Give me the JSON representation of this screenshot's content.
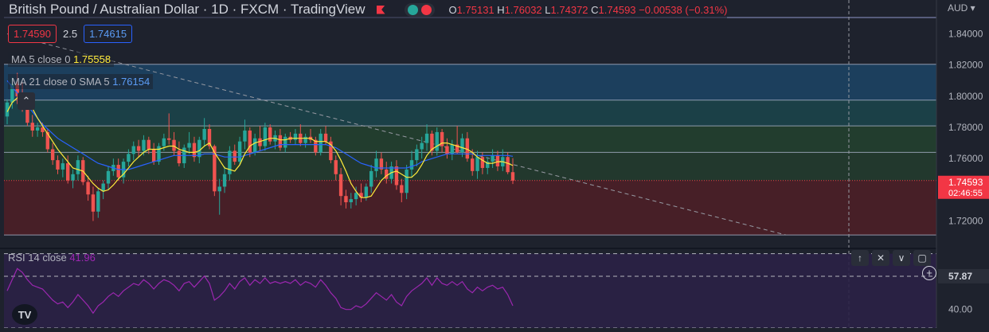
{
  "header": {
    "title": "British Pound / Australian Dollar  ·  1D  ·  FXCM  ·  TradingView",
    "ohlc": {
      "o_label": "O",
      "o": "1.75131",
      "h_label": "H",
      "h": "1.76032",
      "l_label": "L",
      "l": "1.74372",
      "c_label": "C",
      "c": "1.74593",
      "change": "−0.00538 (−0.31%)"
    }
  },
  "trade": {
    "sell": "1.74590",
    "spread": "2.5",
    "buy": "1.74615"
  },
  "indicators": {
    "ma5": {
      "label": "MA 5 close 0",
      "value": "1.75558",
      "color": "#ffeb3b"
    },
    "ma21": {
      "label": "MA 21 close 0 SMA 5",
      "value": "1.76154",
      "color": "#2962ff"
    },
    "rsi": {
      "label": "RSI 14 close",
      "value": "41.96",
      "color": "#9c27b0"
    }
  },
  "price_axis": {
    "currency": "AUD",
    "labels": [
      "1.84000",
      "1.82000",
      "1.80000",
      "1.78000",
      "1.76000",
      "1.72000"
    ],
    "last_price": "1.74593",
    "countdown": "02:46:55"
  },
  "rsi_axis": {
    "labels": [
      "57.87",
      "40.00"
    ]
  },
  "colors": {
    "background": "#1e222d",
    "up": "#26a69a",
    "down": "#ef5350",
    "ma5": "#ffeb3b",
    "ma21": "#2962ff",
    "rsi": "#9c27b0",
    "last": "#f23645"
  },
  "icons": [
    "flag-icon",
    "collapse-up-icon",
    "arrow-up-icon",
    "close-icon",
    "minimize-icon",
    "maximize-icon",
    "plus-icon",
    "tradingview-logo-icon"
  ],
  "chart_data": {
    "type": "candlestick",
    "y_range": [
      1.7075,
      1.8505
    ],
    "zones": [
      {
        "from": 1.8205,
        "to": 1.7975,
        "color": "#1c4a6e"
      },
      {
        "from": 1.7975,
        "to": 1.781,
        "color": "#1b4b50"
      },
      {
        "from": 1.781,
        "to": 1.764,
        "color": "#24472f"
      },
      {
        "from": 1.764,
        "to": 1.746,
        "color": "#24402d"
      },
      {
        "from": 1.746,
        "to": 1.711,
        "color": "#561f26"
      }
    ],
    "level_lines": [
      1.8205,
      1.7975,
      1.781,
      1.764,
      1.711
    ],
    "trendline": {
      "from": [
        0,
        1.84
      ],
      "to": [
        154,
        1.711
      ]
    },
    "candles": [
      [
        1.787,
        1.798,
        1.782,
        1.796
      ],
      [
        1.796,
        1.812,
        1.792,
        1.808
      ],
      [
        1.808,
        1.815,
        1.795,
        1.8
      ],
      [
        1.8,
        1.809,
        1.79,
        1.793
      ],
      [
        1.793,
        1.799,
        1.781,
        1.783
      ],
      [
        1.783,
        1.788,
        1.774,
        1.778
      ],
      [
        1.778,
        1.783,
        1.774,
        1.78
      ],
      [
        1.78,
        1.783,
        1.774,
        1.777
      ],
      [
        1.777,
        1.779,
        1.764,
        1.766
      ],
      [
        1.766,
        1.77,
        1.756,
        1.759
      ],
      [
        1.759,
        1.762,
        1.75,
        1.753
      ],
      [
        1.753,
        1.76,
        1.748,
        1.757
      ],
      [
        1.757,
        1.762,
        1.744,
        1.746
      ],
      [
        1.746,
        1.753,
        1.741,
        1.75
      ],
      [
        1.75,
        1.762,
        1.746,
        1.759
      ],
      [
        1.759,
        1.761,
        1.743,
        1.745
      ],
      [
        1.745,
        1.749,
        1.733,
        1.737
      ],
      [
        1.737,
        1.742,
        1.72,
        1.726
      ],
      [
        1.726,
        1.741,
        1.722,
        1.739
      ],
      [
        1.739,
        1.746,
        1.734,
        1.744
      ],
      [
        1.744,
        1.755,
        1.74,
        1.752
      ],
      [
        1.752,
        1.76,
        1.749,
        1.756
      ],
      [
        1.756,
        1.76,
        1.746,
        1.748
      ],
      [
        1.748,
        1.76,
        1.744,
        1.758
      ],
      [
        1.758,
        1.766,
        1.755,
        1.763
      ],
      [
        1.763,
        1.771,
        1.759,
        1.768
      ],
      [
        1.768,
        1.772,
        1.761,
        1.765
      ],
      [
        1.765,
        1.775,
        1.762,
        1.772
      ],
      [
        1.772,
        1.774,
        1.763,
        1.766
      ],
      [
        1.766,
        1.77,
        1.756,
        1.758
      ],
      [
        1.758,
        1.77,
        1.756,
        1.768
      ],
      [
        1.768,
        1.776,
        1.765,
        1.773
      ],
      [
        1.773,
        1.789,
        1.769,
        1.772
      ],
      [
        1.772,
        1.777,
        1.762,
        1.765
      ],
      [
        1.765,
        1.771,
        1.755,
        1.757
      ],
      [
        1.757,
        1.769,
        1.754,
        1.767
      ],
      [
        1.767,
        1.777,
        1.763,
        1.77
      ],
      [
        1.77,
        1.774,
        1.758,
        1.761
      ],
      [
        1.761,
        1.774,
        1.757,
        1.772
      ],
      [
        1.772,
        1.786,
        1.768,
        1.779
      ],
      [
        1.779,
        1.782,
        1.766,
        1.768
      ],
      [
        1.768,
        1.769,
        1.736,
        1.739
      ],
      [
        1.739,
        1.747,
        1.724,
        1.742
      ],
      [
        1.742,
        1.755,
        1.738,
        1.75
      ],
      [
        1.75,
        1.768,
        1.746,
        1.765
      ],
      [
        1.765,
        1.769,
        1.756,
        1.758
      ],
      [
        1.758,
        1.774,
        1.756,
        1.771
      ],
      [
        1.771,
        1.785,
        1.766,
        1.778
      ],
      [
        1.778,
        1.78,
        1.761,
        1.764
      ],
      [
        1.764,
        1.776,
        1.762,
        1.773
      ],
      [
        1.773,
        1.781,
        1.765,
        1.768
      ],
      [
        1.768,
        1.783,
        1.765,
        1.78
      ],
      [
        1.78,
        1.782,
        1.769,
        1.771
      ],
      [
        1.771,
        1.778,
        1.766,
        1.775
      ],
      [
        1.775,
        1.779,
        1.765,
        1.767
      ],
      [
        1.767,
        1.776,
        1.764,
        1.774
      ],
      [
        1.774,
        1.777,
        1.77,
        1.772
      ],
      [
        1.772,
        1.779,
        1.769,
        1.776
      ],
      [
        1.776,
        1.782,
        1.768,
        1.77
      ],
      [
        1.77,
        1.776,
        1.767,
        1.774
      ],
      [
        1.774,
        1.779,
        1.77,
        1.772
      ],
      [
        1.772,
        1.774,
        1.762,
        1.764
      ],
      [
        1.764,
        1.779,
        1.762,
        1.776
      ],
      [
        1.776,
        1.781,
        1.769,
        1.771
      ],
      [
        1.771,
        1.774,
        1.757,
        1.759
      ],
      [
        1.759,
        1.762,
        1.746,
        1.75
      ],
      [
        1.75,
        1.754,
        1.73,
        1.736
      ],
      [
        1.736,
        1.74,
        1.728,
        1.732
      ],
      [
        1.732,
        1.738,
        1.728,
        1.734
      ],
      [
        1.734,
        1.742,
        1.73,
        1.738
      ],
      [
        1.738,
        1.744,
        1.732,
        1.735
      ],
      [
        1.735,
        1.744,
        1.733,
        1.742
      ],
      [
        1.742,
        1.756,
        1.738,
        1.752
      ],
      [
        1.752,
        1.765,
        1.748,
        1.76
      ],
      [
        1.76,
        1.764,
        1.75,
        1.753
      ],
      [
        1.753,
        1.758,
        1.744,
        1.747
      ],
      [
        1.747,
        1.758,
        1.744,
        1.755
      ],
      [
        1.755,
        1.759,
        1.74,
        1.743
      ],
      [
        1.743,
        1.747,
        1.732,
        1.738
      ],
      [
        1.738,
        1.756,
        1.734,
        1.753
      ],
      [
        1.753,
        1.765,
        1.748,
        1.759
      ],
      [
        1.759,
        1.769,
        1.755,
        1.766
      ],
      [
        1.766,
        1.774,
        1.76,
        1.77
      ],
      [
        1.77,
        1.782,
        1.765,
        1.776
      ],
      [
        1.776,
        1.778,
        1.762,
        1.765
      ],
      [
        1.765,
        1.78,
        1.762,
        1.777
      ],
      [
        1.777,
        1.779,
        1.764,
        1.768
      ],
      [
        1.768,
        1.773,
        1.76,
        1.763
      ],
      [
        1.763,
        1.772,
        1.759,
        1.769
      ],
      [
        1.769,
        1.781,
        1.763,
        1.764
      ],
      [
        1.764,
        1.776,
        1.761,
        1.773
      ],
      [
        1.773,
        1.777,
        1.758,
        1.76
      ],
      [
        1.76,
        1.766,
        1.749,
        1.752
      ],
      [
        1.752,
        1.765,
        1.747,
        1.761
      ],
      [
        1.761,
        1.764,
        1.75,
        1.754
      ],
      [
        1.754,
        1.761,
        1.75,
        1.758
      ],
      [
        1.758,
        1.766,
        1.754,
        1.762
      ],
      [
        1.762,
        1.765,
        1.752,
        1.755
      ],
      [
        1.755,
        1.766,
        1.752,
        1.761
      ],
      [
        1.761,
        1.764,
        1.75,
        1.7513
      ],
      [
        1.7513,
        1.7603,
        1.7437,
        1.7459
      ]
    ],
    "ma5": [
      1.79,
      1.796,
      1.799,
      1.799,
      1.796,
      1.792,
      1.786,
      1.781,
      1.776,
      1.771,
      1.766,
      1.762,
      1.758,
      1.754,
      1.753,
      1.752,
      1.748,
      1.744,
      1.741,
      1.739,
      1.74,
      1.743,
      1.747,
      1.75,
      1.754,
      1.758,
      1.761,
      1.764,
      1.766,
      1.766,
      1.766,
      1.767,
      1.768,
      1.768,
      1.766,
      1.765,
      1.764,
      1.764,
      1.765,
      1.768,
      1.77,
      1.764,
      1.759,
      1.754,
      1.753,
      1.752,
      1.756,
      1.763,
      1.768,
      1.77,
      1.771,
      1.772,
      1.773,
      1.773,
      1.772,
      1.772,
      1.773,
      1.773,
      1.773,
      1.773,
      1.773,
      1.771,
      1.771,
      1.771,
      1.769,
      1.765,
      1.759,
      1.752,
      1.744,
      1.739,
      1.735,
      1.735,
      1.736,
      1.741,
      1.746,
      1.749,
      1.751,
      1.752,
      1.75,
      1.748,
      1.748,
      1.751,
      1.756,
      1.762,
      1.766,
      1.768,
      1.77,
      1.77,
      1.769,
      1.768,
      1.767,
      1.766,
      1.764,
      1.761,
      1.759,
      1.757,
      1.757,
      1.758,
      1.758,
      1.757,
      1.7556
    ],
    "ma21": [
      1.81,
      1.806,
      1.802,
      1.798,
      1.794,
      1.79,
      1.786,
      1.782,
      1.779,
      1.776,
      1.773,
      1.771,
      1.769,
      1.767,
      1.765,
      1.763,
      1.761,
      1.759,
      1.757,
      1.756,
      1.755,
      1.754,
      1.753,
      1.753,
      1.753,
      1.754,
      1.755,
      1.756,
      1.757,
      1.758,
      1.759,
      1.76,
      1.761,
      1.762,
      1.762,
      1.762,
      1.762,
      1.762,
      1.762,
      1.763,
      1.763,
      1.763,
      1.762,
      1.761,
      1.761,
      1.761,
      1.761,
      1.762,
      1.763,
      1.764,
      1.765,
      1.766,
      1.767,
      1.768,
      1.769,
      1.769,
      1.769,
      1.769,
      1.769,
      1.769,
      1.769,
      1.769,
      1.769,
      1.769,
      1.768,
      1.767,
      1.765,
      1.763,
      1.761,
      1.759,
      1.757,
      1.756,
      1.755,
      1.754,
      1.754,
      1.754,
      1.754,
      1.754,
      1.754,
      1.754,
      1.755,
      1.756,
      1.758,
      1.759,
      1.76,
      1.761,
      1.762,
      1.763,
      1.763,
      1.763,
      1.763,
      1.763,
      1.763,
      1.762,
      1.762,
      1.762,
      1.762,
      1.762,
      1.762,
      1.762,
      1.7615
    ],
    "rsi": {
      "y_range": [
        30,
        72
      ],
      "levels": [
        70,
        57.87,
        30
      ],
      "values": [
        50,
        56,
        62,
        60,
        56,
        53,
        52,
        51,
        48,
        45,
        43,
        44,
        41,
        44,
        48,
        45,
        42,
        38,
        42,
        44,
        47,
        49,
        47,
        50,
        52,
        54,
        53,
        56,
        54,
        51,
        54,
        56,
        55,
        53,
        50,
        54,
        55,
        52,
        55,
        58,
        54,
        45,
        47,
        50,
        54,
        51,
        55,
        57,
        53,
        56,
        54,
        57,
        54,
        55,
        54,
        55,
        54,
        56,
        53,
        55,
        54,
        52,
        56,
        53,
        49,
        46,
        41,
        40,
        40,
        42,
        41,
        43,
        46,
        49,
        47,
        45,
        48,
        44,
        42,
        47,
        50,
        52,
        54,
        57,
        53,
        57,
        54,
        53,
        55,
        53,
        55,
        51,
        49,
        52,
        50,
        52,
        53,
        51,
        52,
        48,
        42
      ]
    }
  }
}
